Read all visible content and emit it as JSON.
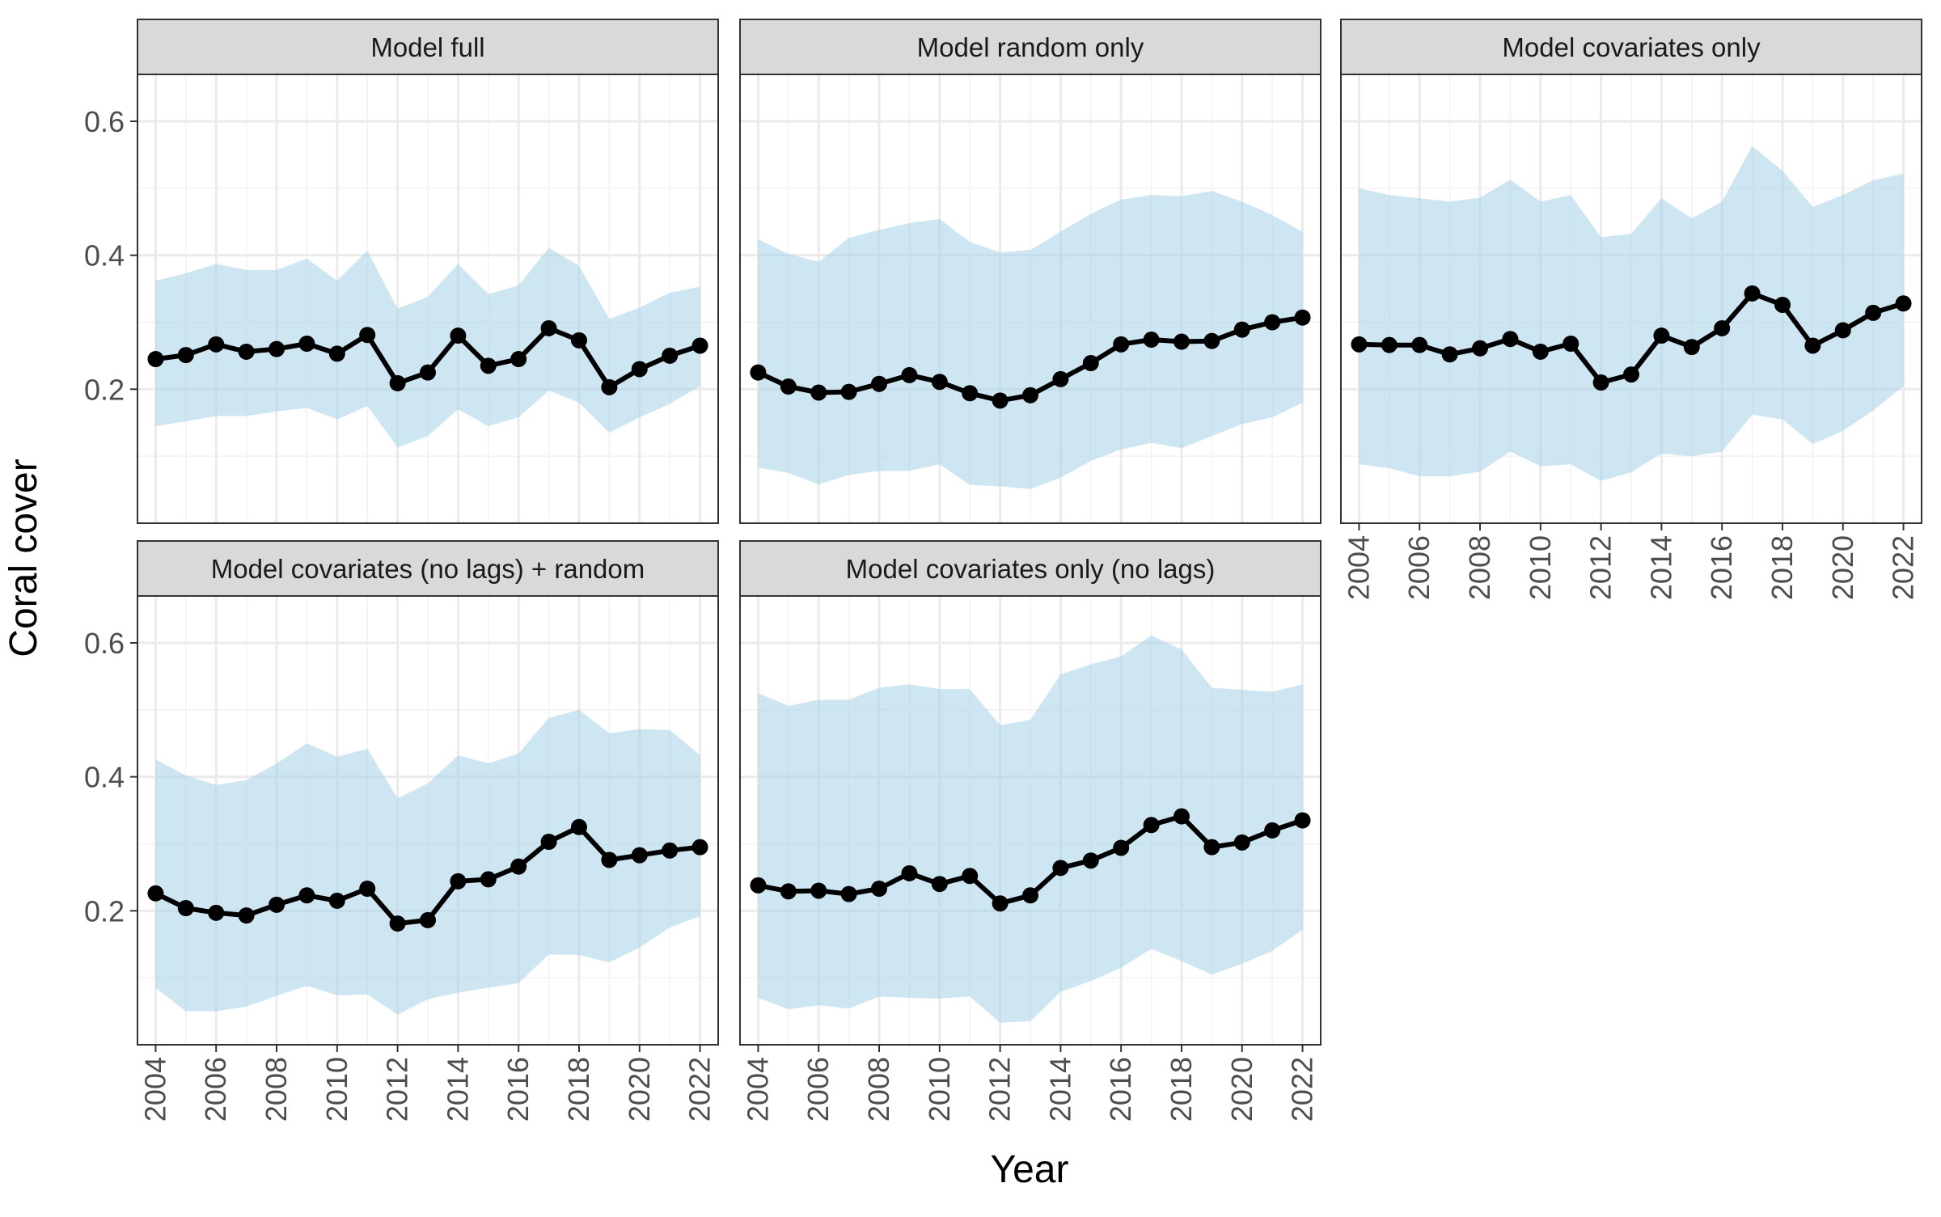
{
  "chart_data": {
    "type": "line",
    "xlabel": "Year",
    "ylabel": "Coral cover",
    "x_ticks": [
      2004,
      2006,
      2008,
      2010,
      2012,
      2014,
      2016,
      2018,
      2020,
      2022
    ],
    "y_ticks": [
      0.2,
      0.4,
      0.6
    ],
    "xlim": [
      2003.4,
      2022.6
    ],
    "ylim": [
      0.0,
      0.67
    ],
    "grid": true,
    "colors": {
      "ribbon": "#a6d2e7",
      "line": "#000000",
      "strip_bg": "#d9d9d9",
      "grid": "#ebebeb"
    },
    "x": [
      2004,
      2005,
      2006,
      2007,
      2008,
      2009,
      2010,
      2011,
      2012,
      2013,
      2014,
      2015,
      2016,
      2017,
      2018,
      2019,
      2020,
      2021,
      2022
    ],
    "panels": [
      {
        "title": "Model full",
        "values": [
          0.245,
          0.251,
          0.267,
          0.256,
          0.26,
          0.268,
          0.253,
          0.281,
          0.209,
          0.225,
          0.28,
          0.235,
          0.245,
          0.291,
          0.273,
          0.203,
          0.23,
          0.25,
          0.265
        ],
        "lower": [
          0.145,
          0.152,
          0.16,
          0.16,
          0.167,
          0.172,
          0.155,
          0.175,
          0.113,
          0.13,
          0.17,
          0.145,
          0.158,
          0.198,
          0.18,
          0.135,
          0.158,
          0.178,
          0.205
        ],
        "upper": [
          0.362,
          0.373,
          0.387,
          0.378,
          0.378,
          0.395,
          0.362,
          0.407,
          0.32,
          0.338,
          0.387,
          0.342,
          0.355,
          0.411,
          0.384,
          0.305,
          0.322,
          0.344,
          0.353
        ]
      },
      {
        "title": "Model random only",
        "values": [
          0.225,
          0.204,
          0.195,
          0.196,
          0.208,
          0.221,
          0.211,
          0.194,
          0.183,
          0.191,
          0.215,
          0.239,
          0.267,
          0.274,
          0.271,
          0.272,
          0.289,
          0.3,
          0.307
        ],
        "lower": [
          0.083,
          0.075,
          0.058,
          0.072,
          0.078,
          0.078,
          0.088,
          0.057,
          0.055,
          0.051,
          0.068,
          0.093,
          0.11,
          0.12,
          0.112,
          0.13,
          0.148,
          0.158,
          0.18
        ],
        "upper": [
          0.424,
          0.402,
          0.39,
          0.426,
          0.438,
          0.448,
          0.454,
          0.42,
          0.404,
          0.408,
          0.435,
          0.462,
          0.483,
          0.49,
          0.488,
          0.496,
          0.48,
          0.46,
          0.435
        ]
      },
      {
        "title": "Model covariates only",
        "values": [
          0.267,
          0.266,
          0.266,
          0.252,
          0.261,
          0.275,
          0.256,
          0.268,
          0.21,
          0.222,
          0.28,
          0.263,
          0.291,
          0.343,
          0.326,
          0.265,
          0.288,
          0.314,
          0.328
        ],
        "lower": [
          0.088,
          0.082,
          0.07,
          0.07,
          0.077,
          0.107,
          0.085,
          0.088,
          0.063,
          0.076,
          0.104,
          0.1,
          0.107,
          0.162,
          0.155,
          0.118,
          0.138,
          0.168,
          0.205
        ],
        "upper": [
          0.5,
          0.49,
          0.485,
          0.48,
          0.486,
          0.513,
          0.48,
          0.49,
          0.427,
          0.432,
          0.485,
          0.455,
          0.48,
          0.563,
          0.526,
          0.472,
          0.49,
          0.512,
          0.522
        ]
      },
      {
        "title": "Model covariates (no lags) + random",
        "values": [
          0.226,
          0.204,
          0.197,
          0.193,
          0.209,
          0.223,
          0.215,
          0.233,
          0.181,
          0.186,
          0.244,
          0.247,
          0.266,
          0.303,
          0.325,
          0.276,
          0.283,
          0.29,
          0.295
        ],
        "lower": [
          0.085,
          0.05,
          0.05,
          0.057,
          0.073,
          0.088,
          0.074,
          0.075,
          0.045,
          0.068,
          0.078,
          0.085,
          0.092,
          0.135,
          0.134,
          0.123,
          0.145,
          0.175,
          0.192
        ],
        "upper": [
          0.426,
          0.402,
          0.388,
          0.395,
          0.42,
          0.45,
          0.43,
          0.442,
          0.368,
          0.39,
          0.432,
          0.42,
          0.435,
          0.488,
          0.5,
          0.465,
          0.471,
          0.47,
          0.432
        ]
      },
      {
        "title": "Model covariates only (no lags)",
        "values": [
          0.238,
          0.229,
          0.23,
          0.225,
          0.233,
          0.256,
          0.24,
          0.252,
          0.211,
          0.223,
          0.264,
          0.275,
          0.294,
          0.328,
          0.341,
          0.295,
          0.302,
          0.32,
          0.335
        ],
        "lower": [
          0.07,
          0.053,
          0.059,
          0.054,
          0.072,
          0.07,
          0.069,
          0.072,
          0.033,
          0.035,
          0.079,
          0.095,
          0.115,
          0.143,
          0.125,
          0.105,
          0.121,
          0.14,
          0.172
        ],
        "upper": [
          0.525,
          0.506,
          0.515,
          0.515,
          0.533,
          0.538,
          0.531,
          0.531,
          0.477,
          0.485,
          0.553,
          0.568,
          0.58,
          0.611,
          0.59,
          0.533,
          0.53,
          0.527,
          0.538
        ]
      }
    ]
  }
}
